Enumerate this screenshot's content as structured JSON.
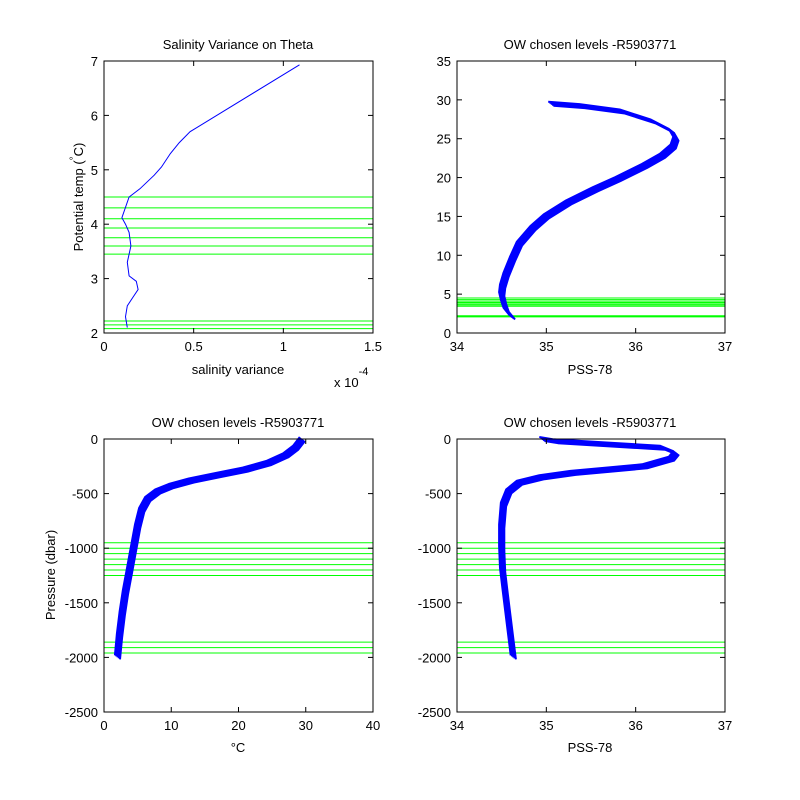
{
  "chart_data": [
    {
      "type": "line",
      "title": "Salinity Variance on Theta",
      "xlabel": "salinity variance",
      "ylabel": "Potential temp (°C)",
      "ylabel_main": "Potential temp (",
      "ylabel_deg": "°",
      "ylabel_end": "C)",
      "x_multiplier_base": "x 10",
      "x_multiplier_exp": "-4",
      "xlim": [
        0,
        1.5
      ],
      "ylim": [
        2,
        7
      ],
      "xticks": [
        "0",
        "0.5",
        "1",
        "1.5"
      ],
      "yticks": [
        "2",
        "3",
        "4",
        "5",
        "6",
        "7"
      ],
      "x": [
        0.13,
        0.12,
        0.13,
        0.16,
        0.19,
        0.18,
        0.14,
        0.13,
        0.15,
        0.14,
        0.12,
        0.1,
        0.14,
        0.2,
        0.28,
        0.32,
        0.37,
        0.42,
        0.48,
        1.09
      ],
      "y": [
        2.1,
        2.3,
        2.5,
        2.65,
        2.8,
        2.95,
        3.05,
        3.3,
        3.6,
        3.85,
        4.0,
        4.12,
        4.5,
        4.65,
        4.9,
        5.05,
        5.3,
        5.5,
        5.7,
        6.93
      ],
      "levels": [
        2.08,
        2.15,
        2.22,
        3.45,
        3.6,
        3.75,
        3.93,
        4.1,
        4.3,
        4.5
      ],
      "colors": {
        "profile": "#0000ff",
        "levels": "#00ff00"
      }
    },
    {
      "type": "line",
      "title": "OW chosen levels -R5903771",
      "xlabel": "PSS-78",
      "ylabel": "",
      "xlim": [
        34,
        37
      ],
      "ylim": [
        0,
        35
      ],
      "xticks": [
        "34",
        "35",
        "36",
        "37"
      ],
      "yticks": [
        "0",
        "5",
        "10",
        "15",
        "20",
        "25",
        "30",
        "35"
      ],
      "x": [
        34.62,
        34.55,
        34.52,
        34.5,
        34.51,
        34.55,
        34.62,
        34.7,
        34.85,
        35.0,
        35.25,
        35.55,
        35.8,
        36.1,
        36.3,
        36.42,
        36.45,
        36.4,
        36.2,
        35.85,
        35.4,
        35.05
      ],
      "y": [
        2.0,
        3.0,
        4.0,
        5.0,
        6.0,
        7.5,
        9.5,
        11.5,
        13.5,
        15.0,
        16.8,
        18.5,
        19.8,
        21.5,
        22.8,
        24.0,
        25.0,
        26.0,
        27.2,
        28.5,
        29.2,
        29.5
      ],
      "levels": [
        2.08,
        2.15,
        2.22,
        3.45,
        3.6,
        3.75,
        3.93,
        4.1,
        4.3,
        4.5
      ],
      "colors": {
        "profile": "#0000ff",
        "levels": "#00ff00"
      }
    },
    {
      "type": "line",
      "title": "OW chosen levels -R5903771",
      "xlabel": "°C",
      "ylabel": "Pressure (dbar)",
      "xlim": [
        0,
        40
      ],
      "ylim": [
        -2500,
        0
      ],
      "xticks": [
        "0",
        "10",
        "20",
        "30",
        "40"
      ],
      "yticks": [
        "-2500",
        "-2000",
        "-1500",
        "-1000",
        "-500",
        "0"
      ],
      "x": [
        2.0,
        2.3,
        2.7,
        3.2,
        3.8,
        4.4,
        5.0,
        5.6,
        6.5,
        8.0,
        10.0,
        13.0,
        17.0,
        21.0,
        24.5,
        27.0,
        28.5,
        29.5
      ],
      "y": [
        -2000,
        -1800,
        -1600,
        -1400,
        -1200,
        -1000,
        -800,
        -650,
        -550,
        -480,
        -430,
        -380,
        -330,
        -280,
        -220,
        -150,
        -80,
        0
      ],
      "levels": [
        -950,
        -1000,
        -1050,
        -1100,
        -1150,
        -1200,
        -1250,
        -1860,
        -1910,
        -1960
      ],
      "colors": {
        "profile": "#0000ff",
        "levels": "#00ff00"
      }
    },
    {
      "type": "line",
      "title": "OW chosen levels -R5903771",
      "xlabel": "PSS-78",
      "ylabel": "",
      "xlim": [
        34,
        37
      ],
      "ylim": [
        -2500,
        0
      ],
      "xticks": [
        "34",
        "35",
        "36",
        "37"
      ],
      "yticks": [
        "-2500",
        "-2000",
        "-1500",
        "-1000",
        "-500",
        "0"
      ],
      "x": [
        34.63,
        34.6,
        34.57,
        34.54,
        34.51,
        34.5,
        34.5,
        34.52,
        34.58,
        34.7,
        34.95,
        35.3,
        35.7,
        36.1,
        36.4,
        36.45,
        36.3,
        35.7,
        35.1,
        34.95
      ],
      "y": [
        -2000,
        -1800,
        -1600,
        -1400,
        -1200,
        -1000,
        -800,
        -600,
        -480,
        -400,
        -350,
        -310,
        -280,
        -250,
        -180,
        -130,
        -80,
        -50,
        -20,
        0
      ],
      "levels": [
        -950,
        -1000,
        -1050,
        -1100,
        -1150,
        -1200,
        -1250,
        -1860,
        -1910,
        -1960
      ],
      "colors": {
        "profile": "#0000ff",
        "levels": "#00ff00"
      }
    }
  ]
}
